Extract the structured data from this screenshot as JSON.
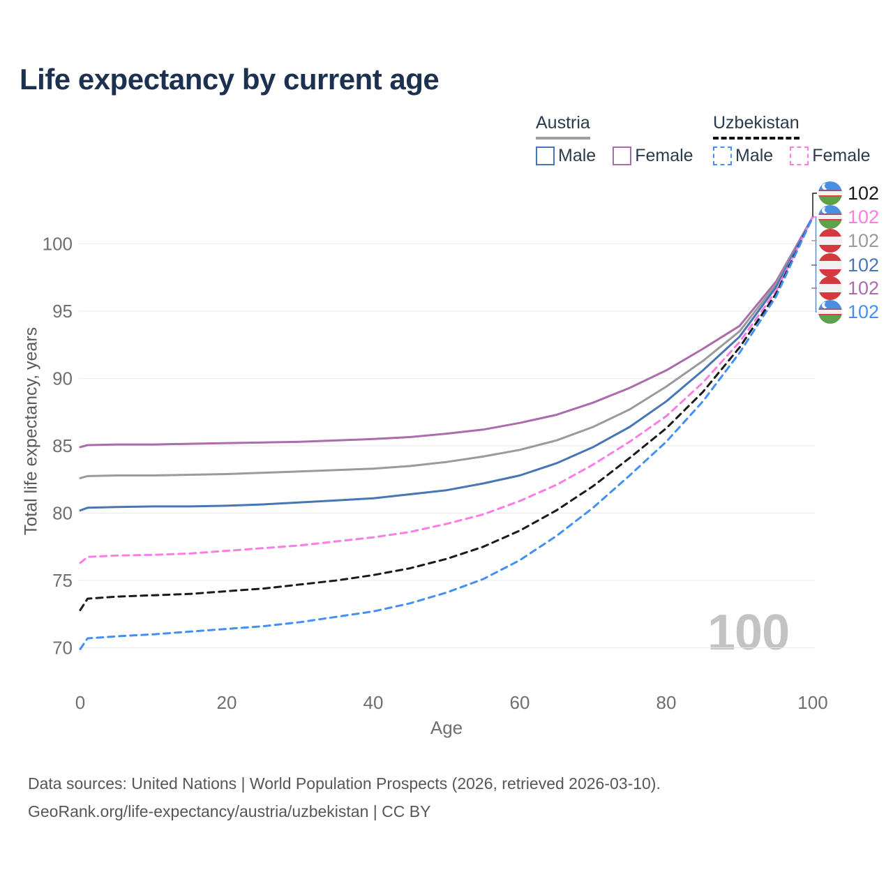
{
  "title": "Life expectancy by current age",
  "legend": {
    "austria": {
      "label": "Austria",
      "male": "Male",
      "female": "Female"
    },
    "uzbekistan": {
      "label": "Uzbekistan",
      "male": "Male",
      "female": "Female"
    }
  },
  "watermark": "100",
  "footer": {
    "line1": "Data sources: United Nations | World Population Prospects (2026, retrieved 2026-03-10).",
    "line2": "GeoRank.org/life-expectancy/austria/uzbekistan | CC BY"
  },
  "colors": {
    "austria_male": "#4677B4",
    "austria_female": "#AC6BAC",
    "austria_both": "#9A9A9A",
    "uzbekistan_male": "#4290F5",
    "uzbekistan_female": "#FB7DE3",
    "uzbekistan_both": "#1A1A1A",
    "grid": "#EAEAEA",
    "tick_text": "#6F6F6F",
    "title_text": "#1C3150",
    "watermark_text": "#C3C3C3"
  },
  "chart_data": {
    "type": "line",
    "title": "Life expectancy by current age",
    "xlabel": "Age",
    "ylabel": "Total life expectancy, years",
    "xlim": [
      0,
      100
    ],
    "ylim": [
      68,
      103
    ],
    "x_ticks": [
      0,
      20,
      40,
      60,
      80,
      100
    ],
    "y_ticks": [
      70,
      75,
      80,
      85,
      90,
      95,
      100
    ],
    "grid": "horizontal",
    "legend_position": "top-right",
    "series": [
      {
        "name": "Austria Female",
        "country": "Austria",
        "sex": "Female",
        "style": "solid",
        "color": "#AC6BAC",
        "points": [
          [
            0,
            84.9
          ],
          [
            1,
            85.05
          ],
          [
            5,
            85.1
          ],
          [
            10,
            85.1
          ],
          [
            15,
            85.15
          ],
          [
            20,
            85.2
          ],
          [
            25,
            85.25
          ],
          [
            30,
            85.3
          ],
          [
            35,
            85.4
          ],
          [
            40,
            85.5
          ],
          [
            45,
            85.65
          ],
          [
            50,
            85.9
          ],
          [
            55,
            86.2
          ],
          [
            60,
            86.7
          ],
          [
            65,
            87.3
          ],
          [
            70,
            88.2
          ],
          [
            75,
            89.3
          ],
          [
            80,
            90.6
          ],
          [
            85,
            92.2
          ],
          [
            90,
            93.9
          ],
          [
            95,
            97.2
          ],
          [
            100,
            102
          ]
        ]
      },
      {
        "name": "Austria Both sexes",
        "country": "Austria",
        "sex": "Both",
        "style": "solid",
        "color": "#9A9A9A",
        "points": [
          [
            0,
            82.6
          ],
          [
            1,
            82.75
          ],
          [
            5,
            82.8
          ],
          [
            10,
            82.8
          ],
          [
            15,
            82.85
          ],
          [
            20,
            82.9
          ],
          [
            25,
            83.0
          ],
          [
            30,
            83.1
          ],
          [
            35,
            83.2
          ],
          [
            40,
            83.3
          ],
          [
            45,
            83.5
          ],
          [
            50,
            83.8
          ],
          [
            55,
            84.2
          ],
          [
            60,
            84.7
          ],
          [
            65,
            85.4
          ],
          [
            70,
            86.4
          ],
          [
            75,
            87.7
          ],
          [
            80,
            89.4
          ],
          [
            85,
            91.3
          ],
          [
            90,
            93.5
          ],
          [
            95,
            97.0
          ],
          [
            100,
            102
          ]
        ]
      },
      {
        "name": "Austria Male",
        "country": "Austria",
        "sex": "Male",
        "style": "solid",
        "color": "#4677B4",
        "points": [
          [
            0,
            80.2
          ],
          [
            1,
            80.4
          ],
          [
            5,
            80.45
          ],
          [
            10,
            80.5
          ],
          [
            15,
            80.5
          ],
          [
            20,
            80.55
          ],
          [
            25,
            80.65
          ],
          [
            30,
            80.8
          ],
          [
            35,
            80.95
          ],
          [
            40,
            81.1
          ],
          [
            45,
            81.4
          ],
          [
            50,
            81.7
          ],
          [
            55,
            82.2
          ],
          [
            60,
            82.8
          ],
          [
            65,
            83.7
          ],
          [
            70,
            84.9
          ],
          [
            75,
            86.4
          ],
          [
            80,
            88.3
          ],
          [
            85,
            90.6
          ],
          [
            90,
            93.1
          ],
          [
            95,
            96.8
          ],
          [
            100,
            102
          ]
        ]
      },
      {
        "name": "Uzbekistan Female",
        "country": "Uzbekistan",
        "sex": "Female",
        "style": "dashed",
        "color": "#FB7DE3",
        "points": [
          [
            0,
            76.3
          ],
          [
            1,
            76.75
          ],
          [
            5,
            76.85
          ],
          [
            10,
            76.9
          ],
          [
            15,
            77.0
          ],
          [
            20,
            77.2
          ],
          [
            25,
            77.4
          ],
          [
            30,
            77.6
          ],
          [
            35,
            77.9
          ],
          [
            40,
            78.2
          ],
          [
            45,
            78.6
          ],
          [
            50,
            79.2
          ],
          [
            55,
            79.9
          ],
          [
            60,
            80.9
          ],
          [
            65,
            82.1
          ],
          [
            70,
            83.6
          ],
          [
            75,
            85.3
          ],
          [
            80,
            87.2
          ],
          [
            85,
            89.7
          ],
          [
            90,
            92.7
          ],
          [
            95,
            96.5
          ],
          [
            100,
            102
          ]
        ]
      },
      {
        "name": "Uzbekistan Both sexes",
        "country": "Uzbekistan",
        "sex": "Both",
        "style": "dashed",
        "color": "#1A1A1A",
        "points": [
          [
            0,
            72.8
          ],
          [
            1,
            73.65
          ],
          [
            5,
            73.8
          ],
          [
            10,
            73.9
          ],
          [
            15,
            74.0
          ],
          [
            20,
            74.2
          ],
          [
            25,
            74.4
          ],
          [
            30,
            74.7
          ],
          [
            35,
            75.0
          ],
          [
            40,
            75.4
          ],
          [
            45,
            75.9
          ],
          [
            50,
            76.6
          ],
          [
            55,
            77.5
          ],
          [
            60,
            78.7
          ],
          [
            65,
            80.2
          ],
          [
            70,
            82.0
          ],
          [
            75,
            84.1
          ],
          [
            80,
            86.3
          ],
          [
            85,
            89.0
          ],
          [
            90,
            92.3
          ],
          [
            95,
            96.3
          ],
          [
            100,
            102
          ]
        ]
      },
      {
        "name": "Uzbekistan Male",
        "country": "Uzbekistan",
        "sex": "Male",
        "style": "dashed",
        "color": "#4290F5",
        "points": [
          [
            0,
            69.9
          ],
          [
            1,
            70.7
          ],
          [
            5,
            70.85
          ],
          [
            10,
            71.0
          ],
          [
            15,
            71.2
          ],
          [
            20,
            71.4
          ],
          [
            25,
            71.6
          ],
          [
            30,
            71.9
          ],
          [
            35,
            72.3
          ],
          [
            40,
            72.7
          ],
          [
            45,
            73.3
          ],
          [
            50,
            74.1
          ],
          [
            55,
            75.1
          ],
          [
            60,
            76.5
          ],
          [
            65,
            78.3
          ],
          [
            70,
            80.4
          ],
          [
            75,
            82.8
          ],
          [
            80,
            85.3
          ],
          [
            85,
            88.3
          ],
          [
            90,
            91.9
          ],
          [
            95,
            96.1
          ],
          [
            100,
            102
          ]
        ]
      }
    ],
    "end_labels": [
      {
        "flag": "uzbekistan",
        "value": "102",
        "color": "#1A1A1A"
      },
      {
        "flag": "uzbekistan",
        "value": "102",
        "color": "#FB7DE3"
      },
      {
        "flag": "austria",
        "value": "102",
        "color": "#9A9A9A"
      },
      {
        "flag": "austria",
        "value": "102",
        "color": "#4677B4"
      },
      {
        "flag": "austria",
        "value": "102",
        "color": "#AC6BAC"
      },
      {
        "flag": "uzbekistan",
        "value": "102",
        "color": "#4290F5"
      }
    ]
  }
}
